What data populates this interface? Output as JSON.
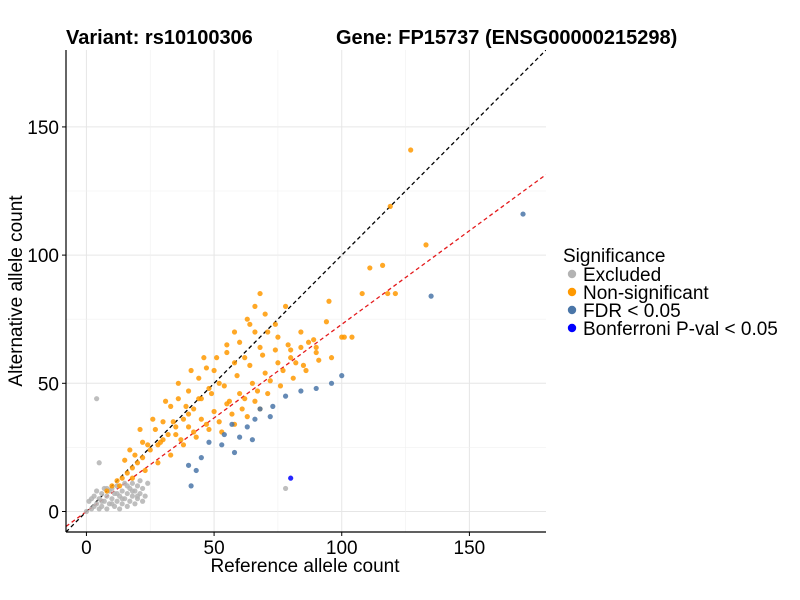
{
  "chart_data": {
    "type": "scatter",
    "title_left": "Variant: rs10100306",
    "title_right": "Gene: FP15737 (ENSG00000215298)",
    "xlabel": "Reference allele count",
    "ylabel": "Alternative allele count",
    "xlim": [
      -8,
      180
    ],
    "ylim": [
      -8,
      180
    ],
    "xticks": [
      0,
      50,
      100,
      150
    ],
    "yticks": [
      0,
      50,
      100,
      150
    ],
    "grid": true,
    "reference_lines": [
      {
        "name": "identity",
        "slope": 1.0,
        "intercept": 0,
        "color": "#000000",
        "dash": "dashed"
      },
      {
        "name": "fit",
        "slope": 0.73,
        "intercept": 0,
        "color": "#e41a1c",
        "dash": "dashed"
      }
    ],
    "legend": {
      "title": "Significance",
      "position": "right",
      "entries": [
        {
          "label": "Excluded",
          "color": "#b3b3b3"
        },
        {
          "label": "Non-significant",
          "color": "#ff9900"
        },
        {
          "label": "FDR < 0.05",
          "color": "#4a76a8"
        },
        {
          "label": "Bonferroni P-val < 0.05",
          "color": "#0000ff"
        }
      ]
    },
    "series": [
      {
        "name": "Excluded",
        "color": "#b3b3b3",
        "points": [
          [
            4,
            44
          ],
          [
            5,
            19
          ],
          [
            0,
            0
          ],
          [
            1,
            4
          ],
          [
            2,
            1
          ],
          [
            2,
            5
          ],
          [
            3,
            2
          ],
          [
            3,
            6
          ],
          [
            4,
            3
          ],
          [
            4,
            8
          ],
          [
            5,
            1
          ],
          [
            5,
            5
          ],
          [
            6,
            7
          ],
          [
            6,
            2
          ],
          [
            7,
            9
          ],
          [
            7,
            4
          ],
          [
            8,
            6
          ],
          [
            8,
            1
          ],
          [
            9,
            3
          ],
          [
            9,
            8
          ],
          [
            10,
            5
          ],
          [
            10,
            9
          ],
          [
            11,
            2
          ],
          [
            11,
            7
          ],
          [
            12,
            4
          ],
          [
            12,
            10
          ],
          [
            13,
            6
          ],
          [
            13,
            1
          ],
          [
            14,
            8
          ],
          [
            14,
            3
          ],
          [
            15,
            5
          ],
          [
            15,
            11
          ],
          [
            16,
            7
          ],
          [
            16,
            2
          ],
          [
            17,
            9
          ],
          [
            17,
            4
          ],
          [
            18,
            6
          ],
          [
            18,
            11
          ],
          [
            19,
            3
          ],
          [
            19,
            8
          ],
          [
            20,
            5
          ],
          [
            20,
            10
          ],
          [
            21,
            7
          ],
          [
            21,
            12
          ],
          [
            22,
            9
          ],
          [
            23,
            6
          ],
          [
            24,
            11
          ],
          [
            6,
            4
          ],
          [
            8,
            9
          ],
          [
            10,
            3
          ],
          [
            12,
            7
          ],
          [
            14,
            5
          ],
          [
            16,
            10
          ],
          [
            18,
            8
          ],
          [
            20,
            6
          ],
          [
            22,
            4
          ],
          [
            78,
            9
          ]
        ]
      },
      {
        "name": "Non-significant",
        "color": "#ff9900",
        "points": [
          [
            127,
            141
          ],
          [
            119,
            119
          ],
          [
            133,
            104
          ],
          [
            116,
            96
          ],
          [
            111,
            95
          ],
          [
            118,
            85
          ],
          [
            121,
            85
          ],
          [
            108,
            85
          ],
          [
            78,
            80
          ],
          [
            95,
            82
          ],
          [
            68,
            85
          ],
          [
            94,
            74
          ],
          [
            100,
            68
          ],
          [
            101,
            68
          ],
          [
            104,
            68
          ],
          [
            70,
            77
          ],
          [
            74,
            73
          ],
          [
            75,
            68
          ],
          [
            80,
            63
          ],
          [
            71,
            70
          ],
          [
            84,
            70
          ],
          [
            87,
            66
          ],
          [
            90,
            64
          ],
          [
            64,
            73
          ],
          [
            66,
            70
          ],
          [
            68,
            64
          ],
          [
            60,
            66
          ],
          [
            62,
            60
          ],
          [
            58,
            58
          ],
          [
            55,
            62
          ],
          [
            50,
            55
          ],
          [
            52,
            50
          ],
          [
            48,
            48
          ],
          [
            45,
            44
          ],
          [
            42,
            40
          ],
          [
            40,
            38
          ],
          [
            38,
            36
          ],
          [
            35,
            33
          ],
          [
            32,
            30
          ],
          [
            30,
            28
          ],
          [
            28,
            26
          ],
          [
            25,
            24
          ],
          [
            22,
            21
          ],
          [
            20,
            19
          ],
          [
            18,
            17
          ],
          [
            16,
            15
          ],
          [
            14,
            13
          ],
          [
            12,
            12
          ],
          [
            10,
            10
          ],
          [
            8,
            8
          ],
          [
            17,
            24
          ],
          [
            22,
            27
          ],
          [
            27,
            32
          ],
          [
            33,
            41
          ],
          [
            36,
            44
          ],
          [
            40,
            47
          ],
          [
            44,
            52
          ],
          [
            47,
            56
          ],
          [
            51,
            60
          ],
          [
            55,
            65
          ],
          [
            58,
            70
          ],
          [
            63,
            75
          ],
          [
            66,
            80
          ],
          [
            30,
            35
          ],
          [
            35,
            30
          ],
          [
            40,
            33
          ],
          [
            45,
            36
          ],
          [
            50,
            39
          ],
          [
            55,
            42
          ],
          [
            60,
            46
          ],
          [
            65,
            50
          ],
          [
            70,
            54
          ],
          [
            75,
            58
          ],
          [
            80,
            60
          ],
          [
            85,
            57
          ],
          [
            90,
            62
          ],
          [
            57,
            38
          ],
          [
            52,
            35
          ],
          [
            48,
            32
          ],
          [
            43,
            29
          ],
          [
            38,
            26
          ],
          [
            33,
            22
          ],
          [
            28,
            19
          ],
          [
            23,
            16
          ],
          [
            18,
            13
          ],
          [
            13,
            10
          ],
          [
            31,
            43
          ],
          [
            36,
            50
          ],
          [
            41,
            55
          ],
          [
            46,
            60
          ],
          [
            15,
            20
          ],
          [
            19,
            22
          ],
          [
            24,
            26
          ],
          [
            29,
            27
          ],
          [
            34,
            35
          ],
          [
            39,
            41
          ],
          [
            44,
            44
          ],
          [
            49,
            46
          ],
          [
            54,
            49
          ],
          [
            59,
            53
          ],
          [
            64,
            57
          ],
          [
            69,
            61
          ],
          [
            74,
            63
          ],
          [
            79,
            65
          ],
          [
            84,
            64
          ],
          [
            89,
            67
          ],
          [
            62,
            44
          ],
          [
            67,
            47
          ],
          [
            72,
            51
          ],
          [
            77,
            55
          ],
          [
            82,
            58
          ],
          [
            53,
            31
          ],
          [
            58,
            34
          ],
          [
            63,
            37
          ],
          [
            68,
            40
          ],
          [
            26,
            36
          ],
          [
            21,
            32
          ],
          [
            37,
            28
          ],
          [
            42,
            31
          ],
          [
            47,
            34
          ],
          [
            56,
            43
          ],
          [
            61,
            40
          ],
          [
            66,
            43
          ],
          [
            71,
            46
          ],
          [
            76,
            49
          ],
          [
            81,
            52
          ],
          [
            86,
            55
          ],
          [
            91,
            59
          ],
          [
            96,
            60
          ]
        ]
      },
      {
        "name": "FDR < 0.05",
        "color": "#4a76a8",
        "points": [
          [
            171,
            116
          ],
          [
            135,
            84
          ],
          [
            100,
            53
          ],
          [
            96,
            50
          ],
          [
            90,
            48
          ],
          [
            84,
            47
          ],
          [
            78,
            45
          ],
          [
            73,
            41
          ],
          [
            68,
            40
          ],
          [
            66,
            36
          ],
          [
            63,
            33
          ],
          [
            57,
            34
          ],
          [
            54,
            30
          ],
          [
            48,
            27
          ],
          [
            45,
            21
          ],
          [
            40,
            18
          ],
          [
            41,
            10
          ],
          [
            43,
            16
          ],
          [
            60,
            29
          ],
          [
            65,
            28
          ],
          [
            72,
            37
          ],
          [
            53,
            26
          ],
          [
            58,
            23
          ]
        ]
      },
      {
        "name": "Bonferroni P-val < 0.05",
        "color": "#0000ff",
        "points": [
          [
            80,
            13
          ]
        ]
      }
    ]
  }
}
